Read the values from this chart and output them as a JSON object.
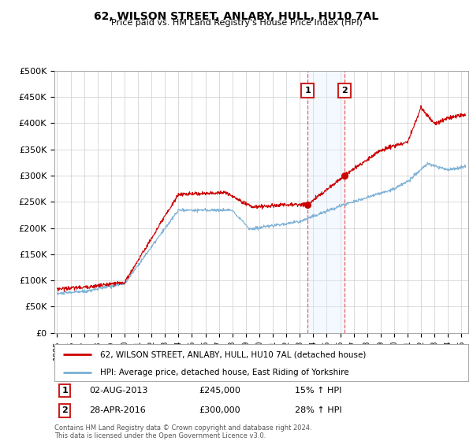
{
  "title": "62, WILSON STREET, ANLABY, HULL, HU10 7AL",
  "subtitle": "Price paid vs. HM Land Registry's House Price Index (HPI)",
  "ylabel_ticks": [
    "£0",
    "£50K",
    "£100K",
    "£150K",
    "£200K",
    "£250K",
    "£300K",
    "£350K",
    "£400K",
    "£450K",
    "£500K"
  ],
  "ytick_values": [
    0,
    50000,
    100000,
    150000,
    200000,
    250000,
    300000,
    350000,
    400000,
    450000,
    500000
  ],
  "ylim": [
    0,
    500000
  ],
  "xlim_start": 1994.8,
  "xlim_end": 2025.5,
  "sale1_date": 2013.58,
  "sale1_price": 245000,
  "sale1_label": "1",
  "sale1_text": "02-AUG-2013",
  "sale1_amount": "£245,000",
  "sale1_hpi": "15% ↑ HPI",
  "sale2_date": 2016.33,
  "sale2_price": 300000,
  "sale2_label": "2",
  "sale2_text": "28-APR-2016",
  "sale2_amount": "£300,000",
  "sale2_hpi": "28% ↑ HPI",
  "legend_line1": "62, WILSON STREET, ANLABY, HULL, HU10 7AL (detached house)",
  "legend_line2": "HPI: Average price, detached house, East Riding of Yorkshire",
  "footer": "Contains HM Land Registry data © Crown copyright and database right 2024.\nThis data is licensed under the Open Government Licence v3.0.",
  "red_color": "#cc0000",
  "blue_color": "#7aafd4",
  "shaded_color": "#ddeeff",
  "vline_color": "#ee4444",
  "background_color": "#ffffff",
  "grid_color": "#cccccc",
  "sale_box_color": "#cc2222"
}
